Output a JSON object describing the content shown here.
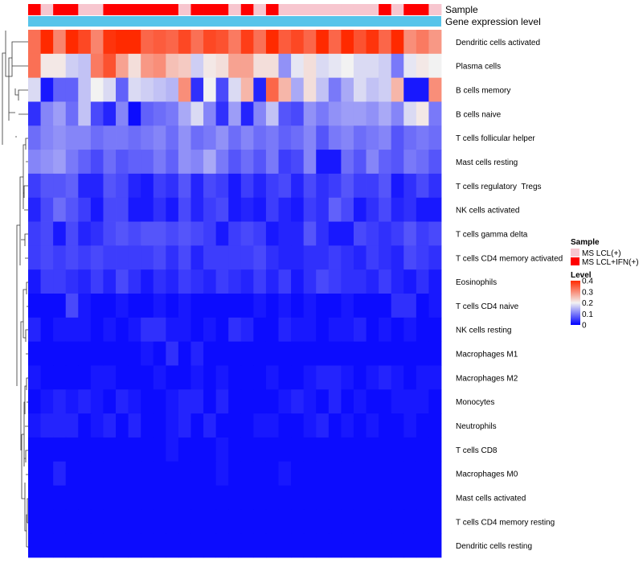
{
  "chart_data": {
    "type": "heatmap",
    "annotation_labels": [
      "Sample",
      "Gene expression level"
    ],
    "sample_annotation": [
      1,
      0,
      1,
      1,
      0,
      0,
      1,
      1,
      1,
      1,
      1,
      1,
      0,
      1,
      1,
      1,
      0,
      1,
      0,
      1,
      0,
      0,
      0,
      0,
      0,
      0,
      0,
      0,
      1,
      0,
      1,
      1,
      0
    ],
    "sample_groups": [
      "MS LCL(+)",
      "MS LCL+IFN(+)"
    ],
    "sample_colors": [
      "#f7c6cf",
      "#ff0000"
    ],
    "expression_annotation_color": "#57c4ea",
    "rows": [
      "Dendritic cells activated",
      "Plasma cells",
      "B cells memory",
      "B cells naive",
      "T cells follicular helper",
      "Mast cells resting",
      "T cells regulatory  Tregs",
      "NK cells activated",
      "T cells gamma delta",
      "T cells CD4 memory activated",
      "Eosinophils",
      "T cells CD4 naive",
      "NK cells resting",
      "Macrophages M1",
      "Macrophages M2",
      "Monocytes",
      "Neutrophils",
      "T cells CD8",
      "Macrophages M0",
      "Mast cells activated",
      "T cells CD4 memory resting",
      "Dendritic cells resting"
    ],
    "n_columns": 33,
    "values": [
      [
        0.33,
        0.4,
        0.31,
        0.4,
        0.37,
        0.31,
        0.39,
        0.4,
        0.4,
        0.34,
        0.35,
        0.34,
        0.37,
        0.33,
        0.37,
        0.36,
        0.32,
        0.38,
        0.33,
        0.4,
        0.35,
        0.37,
        0.34,
        0.4,
        0.34,
        0.4,
        0.36,
        0.39,
        0.34,
        0.4,
        0.3,
        0.32,
        0.29
      ],
      [
        0.33,
        0.21,
        0.21,
        0.17,
        0.16,
        0.32,
        0.36,
        0.28,
        0.22,
        0.29,
        0.3,
        0.25,
        0.24,
        0.17,
        0.21,
        0.22,
        0.28,
        0.28,
        0.22,
        0.22,
        0.12,
        0.19,
        0.22,
        0.18,
        0.19,
        0.2,
        0.18,
        0.18,
        0.17,
        0.1,
        0.19,
        0.21,
        0.2
      ],
      [
        0.18,
        0.02,
        0.08,
        0.08,
        0.16,
        0.2,
        0.18,
        0.08,
        0.18,
        0.17,
        0.16,
        0.15,
        0.3,
        0.04,
        0.2,
        0.06,
        0.18,
        0.26,
        0.03,
        0.34,
        0.26,
        0.14,
        0.22,
        0.16,
        0.1,
        0.14,
        0.18,
        0.16,
        0.17,
        0.26,
        0.02,
        0.02,
        0.3
      ],
      [
        0.04,
        0.11,
        0.13,
        0.09,
        0.16,
        0.06,
        0.03,
        0.11,
        0.01,
        0.08,
        0.09,
        0.1,
        0.14,
        0.18,
        0.11,
        0.04,
        0.13,
        0.03,
        0.11,
        0.16,
        0.07,
        0.06,
        0.12,
        0.1,
        0.12,
        0.13,
        0.13,
        0.12,
        0.14,
        0.11,
        0.18,
        0.21,
        0.1
      ],
      [
        0.09,
        0.11,
        0.12,
        0.11,
        0.11,
        0.09,
        0.1,
        0.1,
        0.09,
        0.1,
        0.11,
        0.09,
        0.12,
        0.09,
        0.1,
        0.12,
        0.09,
        0.11,
        0.09,
        0.1,
        0.08,
        0.09,
        0.11,
        0.07,
        0.1,
        0.11,
        0.09,
        0.1,
        0.11,
        0.07,
        0.09,
        0.1,
        0.09
      ],
      [
        0.11,
        0.12,
        0.13,
        0.1,
        0.08,
        0.06,
        0.09,
        0.07,
        0.08,
        0.08,
        0.1,
        0.08,
        0.12,
        0.11,
        0.14,
        0.1,
        0.07,
        0.09,
        0.07,
        0.1,
        0.05,
        0.06,
        0.11,
        0.02,
        0.02,
        0.09,
        0.07,
        0.11,
        0.08,
        0.07,
        0.1,
        0.09,
        0.07
      ],
      [
        0.05,
        0.07,
        0.07,
        0.08,
        0.03,
        0.03,
        0.07,
        0.06,
        0.03,
        0.02,
        0.05,
        0.04,
        0.07,
        0.03,
        0.06,
        0.05,
        0.02,
        0.05,
        0.03,
        0.05,
        0.06,
        0.03,
        0.06,
        0.04,
        0.05,
        0.07,
        0.05,
        0.05,
        0.07,
        0.02,
        0.04,
        0.06,
        0.04
      ],
      [
        0.03,
        0.06,
        0.09,
        0.07,
        0.05,
        0.02,
        0.06,
        0.06,
        0.02,
        0.02,
        0.04,
        0.02,
        0.06,
        0.03,
        0.05,
        0.06,
        0.02,
        0.03,
        0.02,
        0.05,
        0.03,
        0.02,
        0.05,
        0.04,
        0.08,
        0.06,
        0.02,
        0.04,
        0.06,
        0.03,
        0.04,
        0.02,
        0.02
      ],
      [
        0.05,
        0.06,
        0.02,
        0.06,
        0.03,
        0.04,
        0.06,
        0.07,
        0.06,
        0.07,
        0.07,
        0.06,
        0.07,
        0.06,
        0.05,
        0.02,
        0.05,
        0.06,
        0.05,
        0.02,
        0.03,
        0.03,
        0.07,
        0.04,
        0.02,
        0.02,
        0.06,
        0.05,
        0.04,
        0.05,
        0.07,
        0.05,
        0.06
      ],
      [
        0.05,
        0.06,
        0.05,
        0.06,
        0.05,
        0.06,
        0.05,
        0.05,
        0.05,
        0.05,
        0.06,
        0.04,
        0.06,
        0.03,
        0.05,
        0.05,
        0.05,
        0.05,
        0.06,
        0.04,
        0.03,
        0.03,
        0.04,
        0.04,
        0.05,
        0.04,
        0.03,
        0.05,
        0.04,
        0.03,
        0.06,
        0.05,
        0.04
      ],
      [
        0.02,
        0.05,
        0.05,
        0.04,
        0.03,
        0.05,
        0.03,
        0.06,
        0.04,
        0.02,
        0.04,
        0.03,
        0.05,
        0.04,
        0.03,
        0.05,
        0.04,
        0.03,
        0.05,
        0.03,
        0.05,
        0.02,
        0.04,
        0.06,
        0.05,
        0.04,
        0.04,
        0.03,
        0.05,
        0.03,
        0.02,
        0.04,
        0.02
      ],
      [
        0.01,
        0.01,
        0.01,
        0.06,
        0.02,
        0.01,
        0.01,
        0.02,
        0.01,
        0.01,
        0.02,
        0.01,
        0.02,
        0.01,
        0.01,
        0.01,
        0.01,
        0.01,
        0.02,
        0.01,
        0.02,
        0.01,
        0.02,
        0.01,
        0.01,
        0.02,
        0.01,
        0.01,
        0.01,
        0.04,
        0.04,
        0.01,
        0.02
      ],
      [
        0.03,
        0.01,
        0.02,
        0.02,
        0.02,
        0.01,
        0.02,
        0.01,
        0.02,
        0.04,
        0.04,
        0.02,
        0.02,
        0.01,
        0.02,
        0.01,
        0.04,
        0.03,
        0.01,
        0.01,
        0.03,
        0.02,
        0.02,
        0.01,
        0.02,
        0.02,
        0.03,
        0.01,
        0.02,
        0.01,
        0.02,
        0.01,
        0.01
      ],
      [
        0.01,
        0.01,
        0.01,
        0.01,
        0.01,
        0.01,
        0.01,
        0.01,
        0.01,
        0.02,
        0.01,
        0.04,
        0.01,
        0.03,
        0.01,
        0.01,
        0.01,
        0.01,
        0.01,
        0.01,
        0.01,
        0.01,
        0.01,
        0.01,
        0.01,
        0.01,
        0.01,
        0.01,
        0.01,
        0.01,
        0.01,
        0.01,
        0.01
      ],
      [
        0.02,
        0.01,
        0.01,
        0.01,
        0.01,
        0.02,
        0.02,
        0.01,
        0.01,
        0.01,
        0.02,
        0.01,
        0.01,
        0.02,
        0.01,
        0.02,
        0.01,
        0.01,
        0.01,
        0.02,
        0.01,
        0.01,
        0.02,
        0.03,
        0.03,
        0.02,
        0.01,
        0.02,
        0.03,
        0.02,
        0.01,
        0.02,
        0.02
      ],
      [
        0.01,
        0.02,
        0.03,
        0.02,
        0.03,
        0.02,
        0.01,
        0.03,
        0.02,
        0.01,
        0.01,
        0.02,
        0.03,
        0.03,
        0.01,
        0.03,
        0.01,
        0.01,
        0.01,
        0.01,
        0.02,
        0.03,
        0.02,
        0.01,
        0.03,
        0.01,
        0.02,
        0.01,
        0.01,
        0.02,
        0.02,
        0.02,
        0.01
      ],
      [
        0.02,
        0.03,
        0.03,
        0.03,
        0.01,
        0.02,
        0.03,
        0.01,
        0.03,
        0.01,
        0.01,
        0.02,
        0.03,
        0.01,
        0.03,
        0.01,
        0.01,
        0.01,
        0.02,
        0.02,
        0.01,
        0.01,
        0.02,
        0.03,
        0.01,
        0.02,
        0.01,
        0.02,
        0.01,
        0.01,
        0.02,
        0.01,
        0.01
      ],
      [
        0.01,
        0.01,
        0.01,
        0.01,
        0.01,
        0.01,
        0.01,
        0.01,
        0.01,
        0.01,
        0.01,
        0.02,
        0.01,
        0.01,
        0.01,
        0.02,
        0.01,
        0.01,
        0.01,
        0.01,
        0.01,
        0.01,
        0.01,
        0.01,
        0.01,
        0.01,
        0.01,
        0.01,
        0.01,
        0.01,
        0.01,
        0.01,
        0.01
      ],
      [
        0.01,
        0.01,
        0.03,
        0.01,
        0.01,
        0.01,
        0.01,
        0.01,
        0.01,
        0.01,
        0.01,
        0.01,
        0.01,
        0.01,
        0.01,
        0.02,
        0.01,
        0.01,
        0.01,
        0.01,
        0.02,
        0.01,
        0.01,
        0.01,
        0.01,
        0.01,
        0.01,
        0.01,
        0.01,
        0.01,
        0.01,
        0.01,
        0.01
      ],
      [
        0.01,
        0.01,
        0.01,
        0.01,
        0.01,
        0.01,
        0.01,
        0.01,
        0.01,
        0.01,
        0.01,
        0.01,
        0.01,
        0.01,
        0.01,
        0.01,
        0.01,
        0.01,
        0.01,
        0.01,
        0.01,
        0.01,
        0.01,
        0.01,
        0.01,
        0.01,
        0.01,
        0.01,
        0.01,
        0.01,
        0.01,
        0.01,
        0.01
      ],
      [
        0.01,
        0.01,
        0.01,
        0.01,
        0.01,
        0.01,
        0.01,
        0.01,
        0.01,
        0.01,
        0.01,
        0.01,
        0.01,
        0.01,
        0.01,
        0.01,
        0.01,
        0.01,
        0.01,
        0.01,
        0.01,
        0.01,
        0.01,
        0.01,
        0.01,
        0.01,
        0.01,
        0.01,
        0.01,
        0.01,
        0.01,
        0.01,
        0.01
      ],
      [
        0.01,
        0.01,
        0.01,
        0.01,
        0.01,
        0.01,
        0.01,
        0.01,
        0.01,
        0.01,
        0.01,
        0.01,
        0.01,
        0.01,
        0.01,
        0.01,
        0.01,
        0.01,
        0.01,
        0.01,
        0.01,
        0.01,
        0.01,
        0.01,
        0.01,
        0.01,
        0.01,
        0.01,
        0.01,
        0.01,
        0.01,
        0.01,
        0.01
      ]
    ],
    "color_scale": {
      "stops": [
        0,
        0.2,
        0.4
      ],
      "colors": [
        "#0000ff",
        "#f2f2f2",
        "#ff2a00"
      ]
    },
    "legend": {
      "sample_title": "Sample",
      "level_title": "Level",
      "level_ticks": [
        0.4,
        0.3,
        0.2,
        0.1,
        0
      ],
      "level_tick_labels": [
        "0.4",
        "0.3",
        "0.2",
        "0.1",
        "0"
      ]
    },
    "dendrogram": "row clustering tree on left",
    "xlabel": "",
    "ylabel": ""
  }
}
